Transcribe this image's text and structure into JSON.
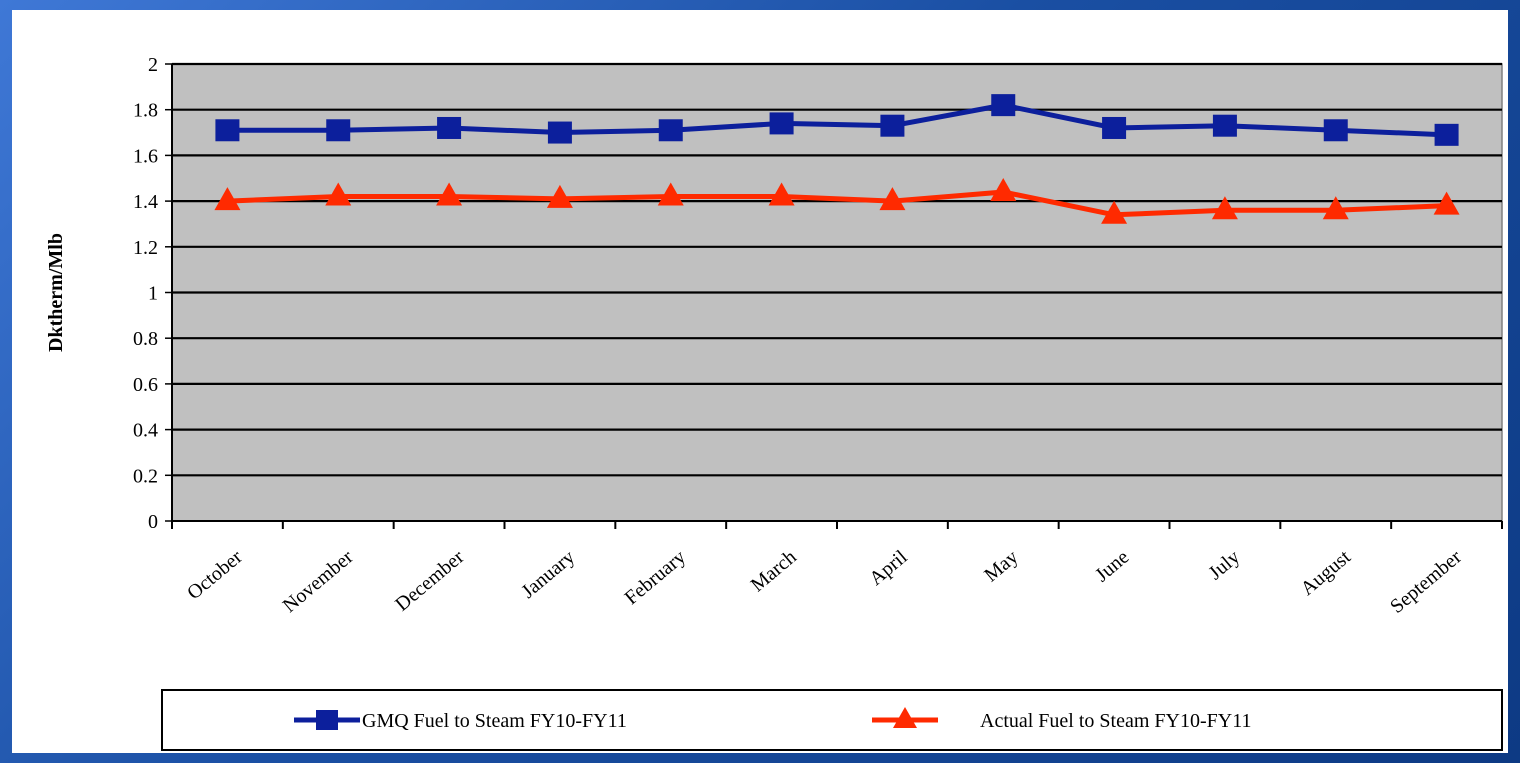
{
  "chart_data": {
    "type": "line",
    "title": "",
    "xlabel": "",
    "ylabel": "Dktherm/Mlb",
    "ylim": [
      0,
      2
    ],
    "yticks": [
      "0",
      "0.2",
      "0.4",
      "0.6",
      "0.8",
      "1",
      "1.2",
      "1.4",
      "1.6",
      "1.8",
      "2"
    ],
    "categories": [
      "October",
      "November",
      "December",
      "January",
      "February",
      "March",
      "April",
      "May",
      "June",
      "July",
      "August",
      "September"
    ],
    "grid": true,
    "legend_position": "bottom",
    "series": [
      {
        "name": "GMQ Fuel to Steam FY10-FY11",
        "color": "#0c1f9c",
        "marker": "square",
        "values": [
          1.71,
          1.71,
          1.72,
          1.7,
          1.71,
          1.74,
          1.73,
          1.82,
          1.72,
          1.73,
          1.71,
          1.69
        ]
      },
      {
        "name": "Actual Fuel to Steam FY10-FY11",
        "color": "#ff2a00",
        "marker": "triangle",
        "values": [
          1.4,
          1.42,
          1.42,
          1.41,
          1.42,
          1.42,
          1.4,
          1.44,
          1.34,
          1.36,
          1.36,
          1.38
        ]
      }
    ]
  },
  "colors": {
    "plot_background": "#c0c0c0",
    "gridline": "#000000",
    "frame_blue": "#1a4fa3"
  }
}
